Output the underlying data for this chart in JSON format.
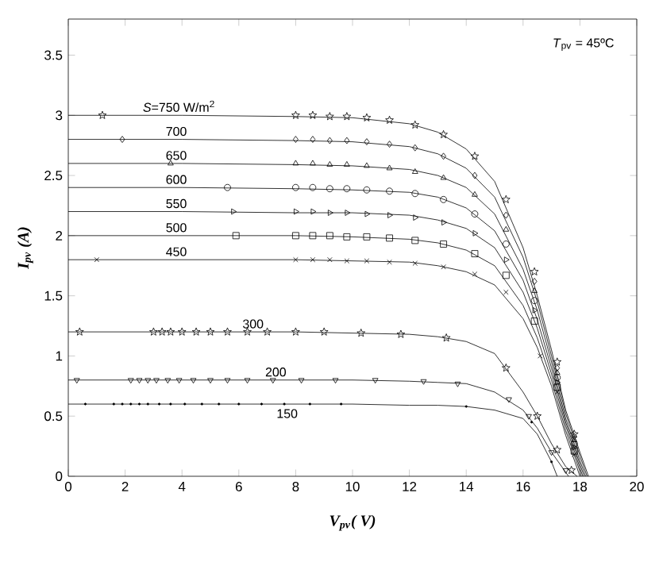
{
  "chart_data": {
    "type": "line",
    "xlabel": "V$_{pv}$( V)",
    "ylabel": "I$_{pv}$ (A)",
    "xlim": [
      0,
      20
    ],
    "xticks": [
      0,
      2,
      4,
      6,
      8,
      10,
      12,
      14,
      16,
      18,
      20
    ],
    "ylim": [
      0,
      3.8
    ],
    "yticks": [
      0,
      0.5,
      1,
      1.5,
      2,
      2.5,
      3,
      3.5
    ],
    "grid": false,
    "annotations": [
      "*T*$_{pv}$ = 45ºC",
      {
        "text": "*S*=750 W/m$^{2}$",
        "x": 3.9,
        "y": 3.0
      },
      {
        "text": "700",
        "x": 3.8,
        "y": 2.8
      },
      {
        "text": "650",
        "x": 3.8,
        "y": 2.6
      },
      {
        "text": "600",
        "x": 3.8,
        "y": 2.4
      },
      {
        "text": "550",
        "x": 3.8,
        "y": 2.2
      },
      {
        "text": "500",
        "x": 3.8,
        "y": 2.0
      },
      {
        "text": "450",
        "x": 3.8,
        "y": 1.8
      },
      {
        "text": "300",
        "x": 6.5,
        "y": 1.2
      },
      {
        "text": "200",
        "x": 7.3,
        "y": 0.8
      },
      {
        "text": "150",
        "x": 7.7,
        "y": 0.6
      }
    ],
    "series": [
      {
        "type": "line",
        "color": "#000000",
        "marker": "none",
        "x": [
          0,
          4,
          8,
          10,
          12,
          13,
          14,
          15,
          16,
          16.5,
          17,
          17.5,
          18,
          18.3
        ],
        "values": [
          3.0,
          3.0,
          2.99,
          2.98,
          2.93,
          2.86,
          2.72,
          2.45,
          1.9,
          1.5,
          1.05,
          0.55,
          0.2,
          0
        ]
      },
      {
        "type": "line",
        "color": "#000000",
        "marker": "none",
        "x": [
          0,
          4,
          8,
          10,
          12,
          13,
          14,
          15,
          16,
          16.5,
          17,
          17.5,
          18,
          18.25
        ],
        "values": [
          2.8,
          2.8,
          2.79,
          2.78,
          2.74,
          2.68,
          2.56,
          2.32,
          1.82,
          1.45,
          1.0,
          0.52,
          0.17,
          0
        ]
      },
      {
        "type": "line",
        "color": "#000000",
        "marker": "none",
        "x": [
          0,
          4,
          8,
          10,
          12,
          13,
          14,
          15,
          16,
          16.5,
          17,
          17.5,
          18,
          18.2
        ],
        "values": [
          2.6,
          2.6,
          2.59,
          2.58,
          2.55,
          2.5,
          2.4,
          2.18,
          1.72,
          1.38,
          0.95,
          0.48,
          0.13,
          0
        ]
      },
      {
        "type": "line",
        "color": "#000000",
        "marker": "none",
        "x": [
          0,
          4,
          8,
          10,
          12,
          13,
          14,
          15,
          16,
          16.5,
          17,
          17.5,
          18,
          18.15
        ],
        "values": [
          2.4,
          2.4,
          2.39,
          2.38,
          2.36,
          2.32,
          2.23,
          2.04,
          1.63,
          1.3,
          0.9,
          0.45,
          0.1,
          0
        ]
      },
      {
        "type": "line",
        "color": "#000000",
        "marker": "none",
        "x": [
          0,
          4,
          8,
          10,
          12,
          13,
          14,
          15,
          16,
          16.5,
          17,
          17.5,
          18,
          18.1
        ],
        "values": [
          2.2,
          2.2,
          2.19,
          2.19,
          2.17,
          2.13,
          2.06,
          1.9,
          1.53,
          1.23,
          0.85,
          0.42,
          0.07,
          0
        ]
      },
      {
        "type": "line",
        "color": "#000000",
        "marker": "none",
        "x": [
          0,
          4,
          8,
          10,
          12,
          13,
          14,
          15,
          16,
          16.5,
          17,
          17.5,
          18,
          18.05
        ],
        "values": [
          2.0,
          2.0,
          2.0,
          1.99,
          1.97,
          1.94,
          1.88,
          1.75,
          1.42,
          1.15,
          0.8,
          0.38,
          0.04,
          0
        ]
      },
      {
        "type": "line",
        "color": "#000000",
        "marker": "none",
        "x": [
          0,
          4,
          8,
          10,
          12,
          13,
          14,
          15,
          16,
          16.5,
          17,
          17.5,
          18
        ],
        "values": [
          1.8,
          1.8,
          1.8,
          1.79,
          1.78,
          1.75,
          1.7,
          1.59,
          1.31,
          1.07,
          0.75,
          0.34,
          0
        ]
      },
      {
        "type": "line",
        "color": "#000000",
        "marker": "none",
        "x": [
          0,
          4,
          8,
          10,
          12,
          13,
          14,
          15,
          16,
          16.5,
          17,
          17.5,
          17.9
        ],
        "values": [
          1.2,
          1.2,
          1.2,
          1.19,
          1.18,
          1.16,
          1.12,
          1.02,
          0.7,
          0.5,
          0.27,
          0.08,
          0
        ]
      },
      {
        "type": "line",
        "color": "#000000",
        "marker": "none",
        "x": [
          0,
          4,
          8,
          10,
          12,
          13,
          14,
          15,
          16,
          16.5,
          17,
          17.6
        ],
        "values": [
          0.8,
          0.8,
          0.8,
          0.8,
          0.79,
          0.78,
          0.77,
          0.7,
          0.55,
          0.4,
          0.2,
          0
        ]
      },
      {
        "type": "line",
        "color": "#000000",
        "marker": "none",
        "x": [
          0,
          4,
          8,
          10,
          12,
          13,
          14,
          15,
          16,
          16.5,
          17,
          17.2
        ],
        "values": [
          0.6,
          0.6,
          0.6,
          0.6,
          0.59,
          0.59,
          0.58,
          0.55,
          0.48,
          0.35,
          0.12,
          0
        ]
      },
      {
        "type": "scatter",
        "color": "#000000",
        "marker": "star",
        "x": [
          1.2,
          8,
          8.6,
          9.2,
          9.8,
          10.5,
          11.3,
          12.2,
          13.2,
          14.3,
          15.4,
          16.4,
          17.2,
          17.8
        ],
        "values": [
          3.0,
          3.0,
          3.0,
          2.99,
          2.99,
          2.98,
          2.96,
          2.92,
          2.84,
          2.66,
          2.3,
          1.7,
          0.95,
          0.35
        ]
      },
      {
        "type": "scatter",
        "color": "#000000",
        "marker": "diamond",
        "x": [
          1.9,
          8,
          8.6,
          9.2,
          9.8,
          10.5,
          11.3,
          12.2,
          13.2,
          14.3,
          15.4,
          16.4,
          17.2,
          17.8
        ],
        "values": [
          2.8,
          2.8,
          2.8,
          2.79,
          2.79,
          2.78,
          2.76,
          2.73,
          2.66,
          2.5,
          2.17,
          1.62,
          0.9,
          0.33
        ]
      },
      {
        "type": "scatter",
        "color": "#000000",
        "marker": "triangle",
        "x": [
          3.6,
          8,
          8.6,
          9.2,
          9.8,
          10.5,
          11.3,
          12.2,
          13.2,
          14.3,
          15.4,
          16.4,
          17.2,
          17.8
        ],
        "values": [
          2.6,
          2.6,
          2.6,
          2.59,
          2.59,
          2.58,
          2.56,
          2.53,
          2.48,
          2.34,
          2.05,
          1.54,
          0.86,
          0.3
        ]
      },
      {
        "type": "scatter",
        "color": "#000000",
        "marker": "circle",
        "x": [
          5.6,
          8,
          8.6,
          9.2,
          9.8,
          10.5,
          11.3,
          12.2,
          13.2,
          14.3,
          15.4,
          16.4,
          17.2,
          17.8
        ],
        "values": [
          2.4,
          2.4,
          2.4,
          2.39,
          2.39,
          2.38,
          2.37,
          2.35,
          2.3,
          2.18,
          1.93,
          1.46,
          0.82,
          0.27
        ]
      },
      {
        "type": "scatter",
        "color": "#000000",
        "marker": "triangle-right",
        "x": [
          5.8,
          8,
          8.6,
          9.2,
          9.8,
          10.5,
          11.3,
          12.2,
          13.2,
          14.3,
          15.4,
          16.4,
          17.2,
          17.8
        ],
        "values": [
          2.2,
          2.2,
          2.2,
          2.19,
          2.19,
          2.18,
          2.17,
          2.15,
          2.11,
          2.02,
          1.8,
          1.38,
          0.78,
          0.24
        ]
      },
      {
        "type": "scatter",
        "color": "#000000",
        "marker": "square",
        "x": [
          5.9,
          8,
          8.6,
          9.2,
          9.8,
          10.5,
          11.3,
          12.2,
          13.2,
          14.3,
          15.4,
          16.4,
          17.2,
          17.8
        ],
        "values": [
          2.0,
          2.0,
          2.0,
          2.0,
          1.99,
          1.99,
          1.98,
          1.96,
          1.93,
          1.85,
          1.67,
          1.29,
          0.74,
          0.21
        ]
      },
      {
        "type": "scatter",
        "color": "#000000",
        "marker": "cross",
        "x": [
          1.0,
          8,
          8.6,
          9.2,
          9.8,
          10.5,
          11.3,
          12.2,
          13.2,
          14.3,
          15.4,
          16.6,
          17.2,
          17.8
        ],
        "values": [
          1.8,
          1.8,
          1.8,
          1.8,
          1.79,
          1.79,
          1.78,
          1.77,
          1.74,
          1.68,
          1.53,
          1.0,
          0.7,
          0.18
        ]
      },
      {
        "type": "scatter",
        "color": "#000000",
        "marker": "star",
        "x": [
          0.4,
          3.0,
          3.3,
          3.6,
          4,
          4.5,
          5,
          5.6,
          6.3,
          7,
          8,
          9,
          10.3,
          11.7,
          13.3,
          15.4,
          16.5,
          17.2,
          17.7
        ],
        "values": [
          1.2,
          1.2,
          1.2,
          1.2,
          1.2,
          1.2,
          1.2,
          1.2,
          1.2,
          1.2,
          1.2,
          1.2,
          1.19,
          1.18,
          1.15,
          0.9,
          0.5,
          0.22,
          0.05
        ]
      },
      {
        "type": "scatter",
        "color": "#000000",
        "marker": "triangle-down",
        "x": [
          0.3,
          2.2,
          2.5,
          2.8,
          3.1,
          3.5,
          3.9,
          4.4,
          5,
          5.6,
          6.3,
          7.2,
          8.2,
          9.4,
          10.8,
          12.5,
          13.7,
          15.5,
          16.2,
          17.0,
          17.5
        ],
        "values": [
          0.8,
          0.8,
          0.8,
          0.8,
          0.8,
          0.8,
          0.8,
          0.8,
          0.8,
          0.8,
          0.8,
          0.8,
          0.8,
          0.8,
          0.8,
          0.79,
          0.77,
          0.64,
          0.5,
          0.2,
          0.05
        ]
      },
      {
        "type": "scatter",
        "color": "#000000",
        "marker": "point",
        "x": [
          0.6,
          1.6,
          1.9,
          2.2,
          2.5,
          2.8,
          3.2,
          3.6,
          4.1,
          4.7,
          5.3,
          6,
          6.8,
          7.6,
          8.5,
          9.6,
          14,
          16.3,
          17.0
        ],
        "values": [
          0.6,
          0.6,
          0.6,
          0.6,
          0.6,
          0.6,
          0.6,
          0.6,
          0.6,
          0.6,
          0.6,
          0.6,
          0.6,
          0.6,
          0.6,
          0.6,
          0.58,
          0.45,
          0.12
        ]
      }
    ]
  }
}
